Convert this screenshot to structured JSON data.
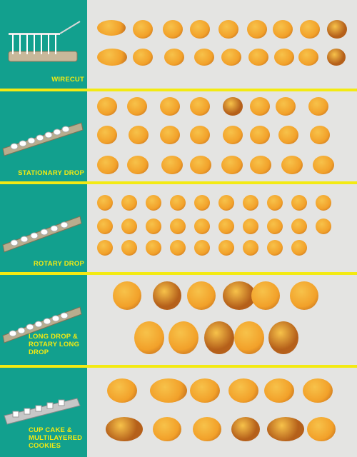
{
  "sections": [
    {
      "label": "WIRECUT"
    },
    {
      "label": "STATIONARY DROP"
    },
    {
      "label": "ROTARY DROP"
    },
    {
      "label": "LONG DROP &\nROTARY LONG\nDROP"
    },
    {
      "label": "CUP CAKE &\nMULTILAYERED\nCOOKIES"
    }
  ],
  "colors": {
    "panel": "#12a08e",
    "divider": "#f3ea12",
    "label_text": "#f3ea12",
    "background": "#e4e4e2",
    "cookie_main": "#f2a12a",
    "cookie_dark": "#b5601a",
    "cookie_light": "#f7c24a"
  }
}
